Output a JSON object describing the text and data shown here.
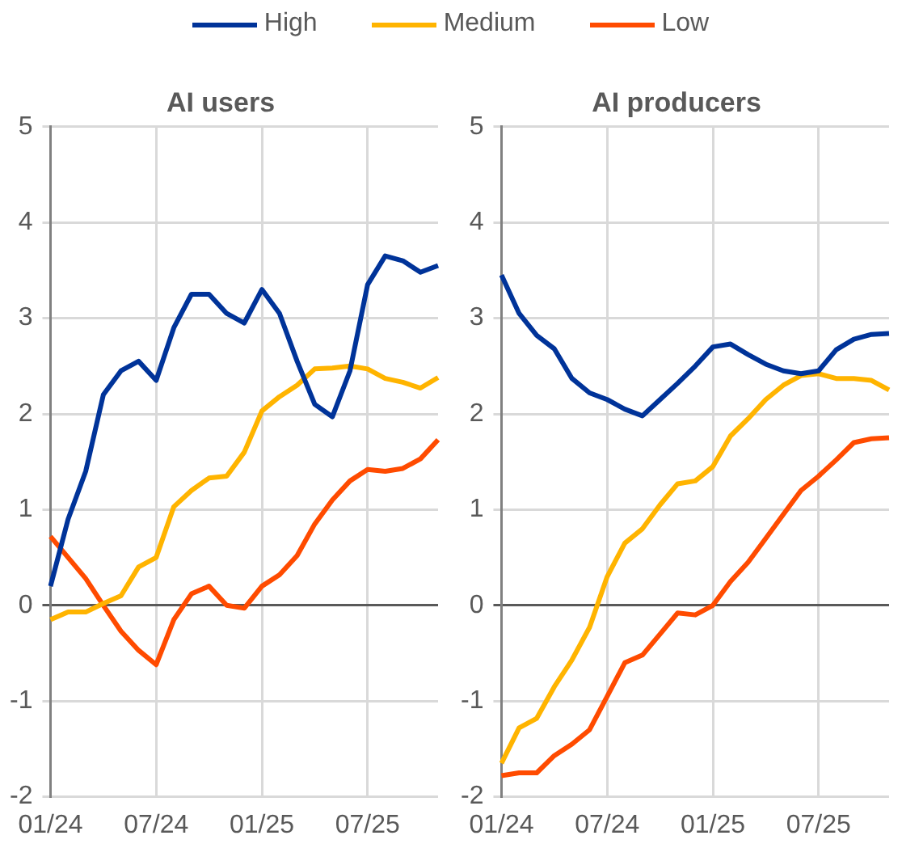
{
  "chart_data": [
    {
      "type": "line",
      "title": "AI users",
      "legend": "top",
      "grid": true,
      "marker": "none",
      "line_style": "solid",
      "categories": [
        "01/24",
        null,
        null,
        null,
        null,
        null,
        "07/24",
        null,
        null,
        null,
        null,
        null,
        "01/25",
        null,
        null,
        null,
        null,
        null,
        "07/25",
        null,
        null,
        null,
        null
      ],
      "ylim": [
        -2,
        5
      ],
      "yticks": [
        -2,
        -1,
        0,
        1,
        2,
        3,
        4,
        5
      ],
      "series": [
        {
          "name": "High",
          "color": "#003399",
          "values": [
            0.2,
            0.9,
            1.4,
            2.2,
            2.45,
            2.55,
            2.35,
            2.9,
            3.25,
            3.25,
            3.05,
            2.95,
            3.3,
            3.05,
            2.55,
            2.1,
            1.97,
            2.45,
            3.35,
            3.65,
            3.6,
            3.48,
            3.55
          ]
        },
        {
          "name": "Medium",
          "color": "#ffb400",
          "values": [
            -0.15,
            -0.07,
            -0.07,
            0.02,
            0.1,
            0.4,
            0.5,
            1.03,
            1.2,
            1.33,
            1.35,
            1.6,
            2.03,
            2.18,
            2.3,
            2.47,
            2.48,
            2.5,
            2.47,
            2.37,
            2.33,
            2.27,
            2.38
          ]
        },
        {
          "name": "Low",
          "color": "#ff4b00",
          "values": [
            0.72,
            0.5,
            0.28,
            0.0,
            -0.27,
            -0.47,
            -0.62,
            -0.15,
            0.12,
            0.2,
            0.0,
            -0.03,
            0.2,
            0.32,
            0.52,
            0.85,
            1.1,
            1.3,
            1.42,
            1.4,
            1.43,
            1.53,
            1.73
          ]
        }
      ]
    },
    {
      "type": "line",
      "title": "AI producers",
      "legend": "top",
      "grid": true,
      "marker": "none",
      "line_style": "solid",
      "categories": [
        "01/24",
        null,
        null,
        null,
        null,
        null,
        "07/24",
        null,
        null,
        null,
        null,
        null,
        "01/25",
        null,
        null,
        null,
        null,
        null,
        "07/25",
        null,
        null,
        null,
        null
      ],
      "ylim": [
        -2,
        5
      ],
      "yticks": [
        -2,
        -1,
        0,
        1,
        2,
        3,
        4,
        5
      ],
      "series": [
        {
          "name": "High",
          "color": "#003399",
          "values": [
            3.45,
            3.05,
            2.82,
            2.68,
            2.37,
            2.22,
            2.15,
            2.05,
            1.98,
            2.15,
            2.32,
            2.5,
            2.7,
            2.73,
            2.62,
            2.52,
            2.45,
            2.42,
            2.45,
            2.67,
            2.78,
            2.83,
            2.84
          ]
        },
        {
          "name": "Medium",
          "color": "#ffb400",
          "values": [
            -1.65,
            -1.28,
            -1.18,
            -0.85,
            -0.57,
            -0.23,
            0.3,
            0.65,
            0.8,
            1.05,
            1.27,
            1.3,
            1.45,
            1.77,
            1.95,
            2.15,
            2.3,
            2.4,
            2.42,
            2.37,
            2.37,
            2.35,
            2.25
          ]
        },
        {
          "name": "Low",
          "color": "#ff4b00",
          "values": [
            -1.78,
            -1.75,
            -1.75,
            -1.57,
            -1.45,
            -1.3,
            -0.95,
            -0.6,
            -0.52,
            -0.3,
            -0.08,
            -0.1,
            0.0,
            0.25,
            0.45,
            0.7,
            0.95,
            1.2,
            1.35,
            1.52,
            1.7,
            1.74,
            1.75
          ]
        }
      ]
    }
  ]
}
